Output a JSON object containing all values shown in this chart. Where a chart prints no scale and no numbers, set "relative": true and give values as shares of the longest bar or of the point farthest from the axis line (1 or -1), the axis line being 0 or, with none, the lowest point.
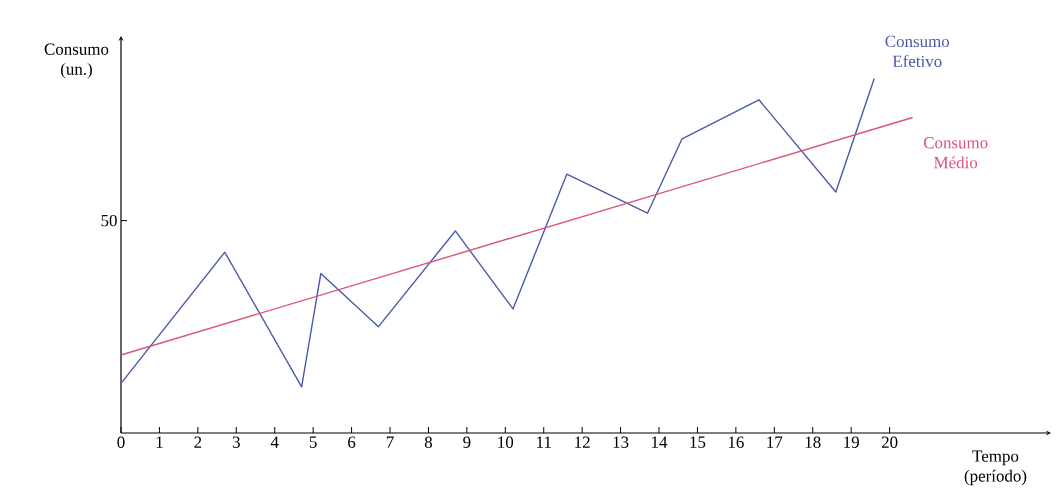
{
  "chart_data": {
    "type": "line",
    "xlabel": "Tempo (período)",
    "ylabel": "Consumo (un.)",
    "relative": true,
    "xlim": [
      0,
      24.2
    ],
    "xticks": [
      0,
      1,
      2,
      3,
      4,
      5,
      6,
      7,
      8,
      9,
      10,
      11,
      12,
      13,
      14,
      15,
      16,
      17,
      18,
      19,
      20
    ],
    "annotations": [
      "50"
    ],
    "marker": "none",
    "line_style": "solid",
    "series": [
      {
        "name": "Consumo Efetivo",
        "color": "#4a5aa8",
        "x": [
          0,
          2.7,
          4.7,
          5.2,
          6.7,
          8.7,
          10.2,
          11.6,
          13.7,
          14.6,
          16.6,
          18.6,
          19.6
        ],
        "values": [
          0.14,
          0.51,
          0.13,
          0.45,
          0.3,
          0.57,
          0.35,
          0.73,
          0.62,
          0.83,
          0.94,
          0.68,
          1
        ]
      },
      {
        "name": "Consumo Médio",
        "color": "#d9557a",
        "x": [
          0,
          20.6
        ],
        "values": [
          0.22,
          0.89
        ]
      }
    ]
  }
}
